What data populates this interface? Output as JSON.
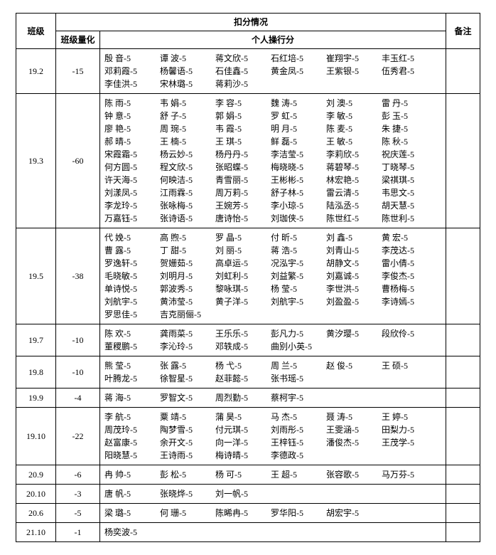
{
  "headers": {
    "class_": "班级",
    "deduction": "扣分情况",
    "note": "备注",
    "class_quant": "班级量化",
    "personal": "个人操行分"
  },
  "rows": [
    {
      "class_": "19.2",
      "quant": "-15",
      "detail": [
        "殷 音-5",
        "谭 波-5",
        "蒋文欣-5",
        "石红培-5",
        "崔翔宇-5",
        "丰玉红-5",
        "邓莉霞-5",
        "杨馨语-5",
        "石佳鑫-5",
        "黄金凤-5",
        "王紫银-5",
        "伍秀君-5",
        "李佳洪-5",
        "宋林璐-5",
        "蒋莉沙-5"
      ]
    },
    {
      "class_": "19.3",
      "quant": "-60",
      "detail": [
        "陈 雨-5",
        "韦 娟-5",
        "李 容-5",
        "魏 涛-5",
        "刘 澳-5",
        "雷 丹-5",
        "钟 意-5",
        "舒 子-5",
        "郭 娟-5",
        "罗 虹-5",
        "李 敏-5",
        "彭 玉-5",
        "廖 艳-5",
        "周 琬-5",
        "韦 霞-5",
        "明 月-5",
        "陈 麦-5",
        "朱 捷-5",
        "郝 晴-5",
        "王 楠-5",
        "王 琪-5",
        "鲜 磊-5",
        "王 敏-5",
        "陈 秋-5",
        "宋霞霜-5",
        "杨云妙-5",
        "杨丹丹-5",
        "李洁莹-5",
        "李莉欣-5",
        "祝庆莲-5",
        "何方圆-5",
        "程文欣-5",
        "张昭蝶-5",
        "梅晓晓-5",
        "蒋碧琴-5",
        "丁晓琴-5",
        "许天海-5",
        "何映洁-5",
        "青雪丽-5",
        "王彬彬-5",
        "林宏艳-5",
        "梁祺琪-5",
        "刘漾凤-5",
        "江雨霖-5",
        "周万莉-5",
        "舒子林-5",
        "雷云清-5",
        "韦思文-5",
        "李龙玲-5",
        "张咏梅-5",
        "王婉芳-5",
        "李小琼-5",
        "陆泓丞-5",
        "胡天慧-5",
        "万嘉钰-5",
        "张诗语-5",
        "唐诗怡-5",
        "刘珈侠-5",
        "陈世红-5",
        "陈世利-5"
      ]
    },
    {
      "class_": "19.5",
      "quant": "-38",
      "detail": [
        "代 娩-5",
        "高 煦-5",
        "罗 晶-5",
        "付 昕-5",
        "刘 鑫-5",
        "黄 宏-5",
        "曹 露-5",
        "丁 甜-5",
        "刘 丽-5",
        "蒋 浩-5",
        "刘青山-5",
        "李茂达-5",
        "罗逸轩-5",
        "贺姗茹-5",
        "高卓运-5",
        "况泓宇-5",
        "胡静文-5",
        "雷小倩-5",
        "毛晓敏-5",
        "刘明月-5",
        "刘虹利-5",
        "刘益繁-5",
        "刘嘉诚-5",
        "李俊杰-5",
        "单诗悦-5",
        "郭波秀-5",
        "黎咏琪-5",
        "杨 莹-5",
        "李世洪-5",
        "曹杨梅-5",
        "刘航宇-5",
        "黄沛莹-5",
        "黄子洋-5",
        "刘航宇-5",
        "刘盈盈-5",
        "李诗嫣-5",
        "罗思佳-5",
        "吉克丽俪-5"
      ]
    },
    {
      "class_": "19.7",
      "quant": "-10",
      "detail": [
        "陈 欢-5",
        "龚雨菜-5",
        "王乐乐-5",
        "彭凡力-5",
        "黄汐璎-5",
        "段欣伶-5",
        "董稷鹏-5",
        "李沁玲-5",
        "邓轶成-5",
        "曲别小英-5"
      ]
    },
    {
      "class_": "19.8",
      "quant": "-10",
      "detail": [
        "熊 莹-5",
        "张 露-5",
        "杨 弋-5",
        "周 兰-5",
        "赵 俊-5",
        "王 硕-5",
        "叶腾龙-5",
        "徐智星-5",
        "赵菲懿-5",
        "张书瑶-5"
      ]
    },
    {
      "class_": "19.9",
      "quant": "-4",
      "detail": [
        "蒋 海-5",
        "罗智文-5",
        "周烈勤-5",
        "蔡柯宇-5"
      ]
    },
    {
      "class_": "19.10",
      "quant": "-22",
      "detail": [
        "李 航-5",
        "粟 靖-5",
        "蒲 昊-5",
        "马 杰-5",
        "聂 涛-5",
        "王 婷-5",
        "周茂玲-5",
        "陶梦雪-5",
        "付元琪-5",
        "刘雨彤-5",
        "王雯涵-5",
        "田梨力-5",
        "赵富康-5",
        "余开文-5",
        "向一洋-5",
        "王梓钰-5",
        "潘俊杰-5",
        "王茂学-5",
        "阳晓慧-5",
        "王诗雨-5",
        "梅诗晴-5",
        "李德政-5"
      ]
    },
    {
      "class_": "20.9",
      "quant": "-6",
      "detail": [
        "冉 帅-5",
        "彭 松-5",
        "杨 可-5",
        "王 超-5",
        "张容歌-5",
        "马万芬-5"
      ]
    },
    {
      "class_": "20.10",
      "quant": "-3",
      "detail": [
        "唐 帆-5",
        "张晓烨-5",
        "刘一帆-5"
      ]
    },
    {
      "class_": "20.6",
      "quant": "-5",
      "detail": [
        "梁 璐-5",
        "何 珊-5",
        "陈晞冉-5",
        "罗华阳-5",
        "胡宏宇-5"
      ]
    },
    {
      "class_": "21.10",
      "quant": "-1",
      "detail": [
        "杨奕波-5"
      ]
    }
  ]
}
